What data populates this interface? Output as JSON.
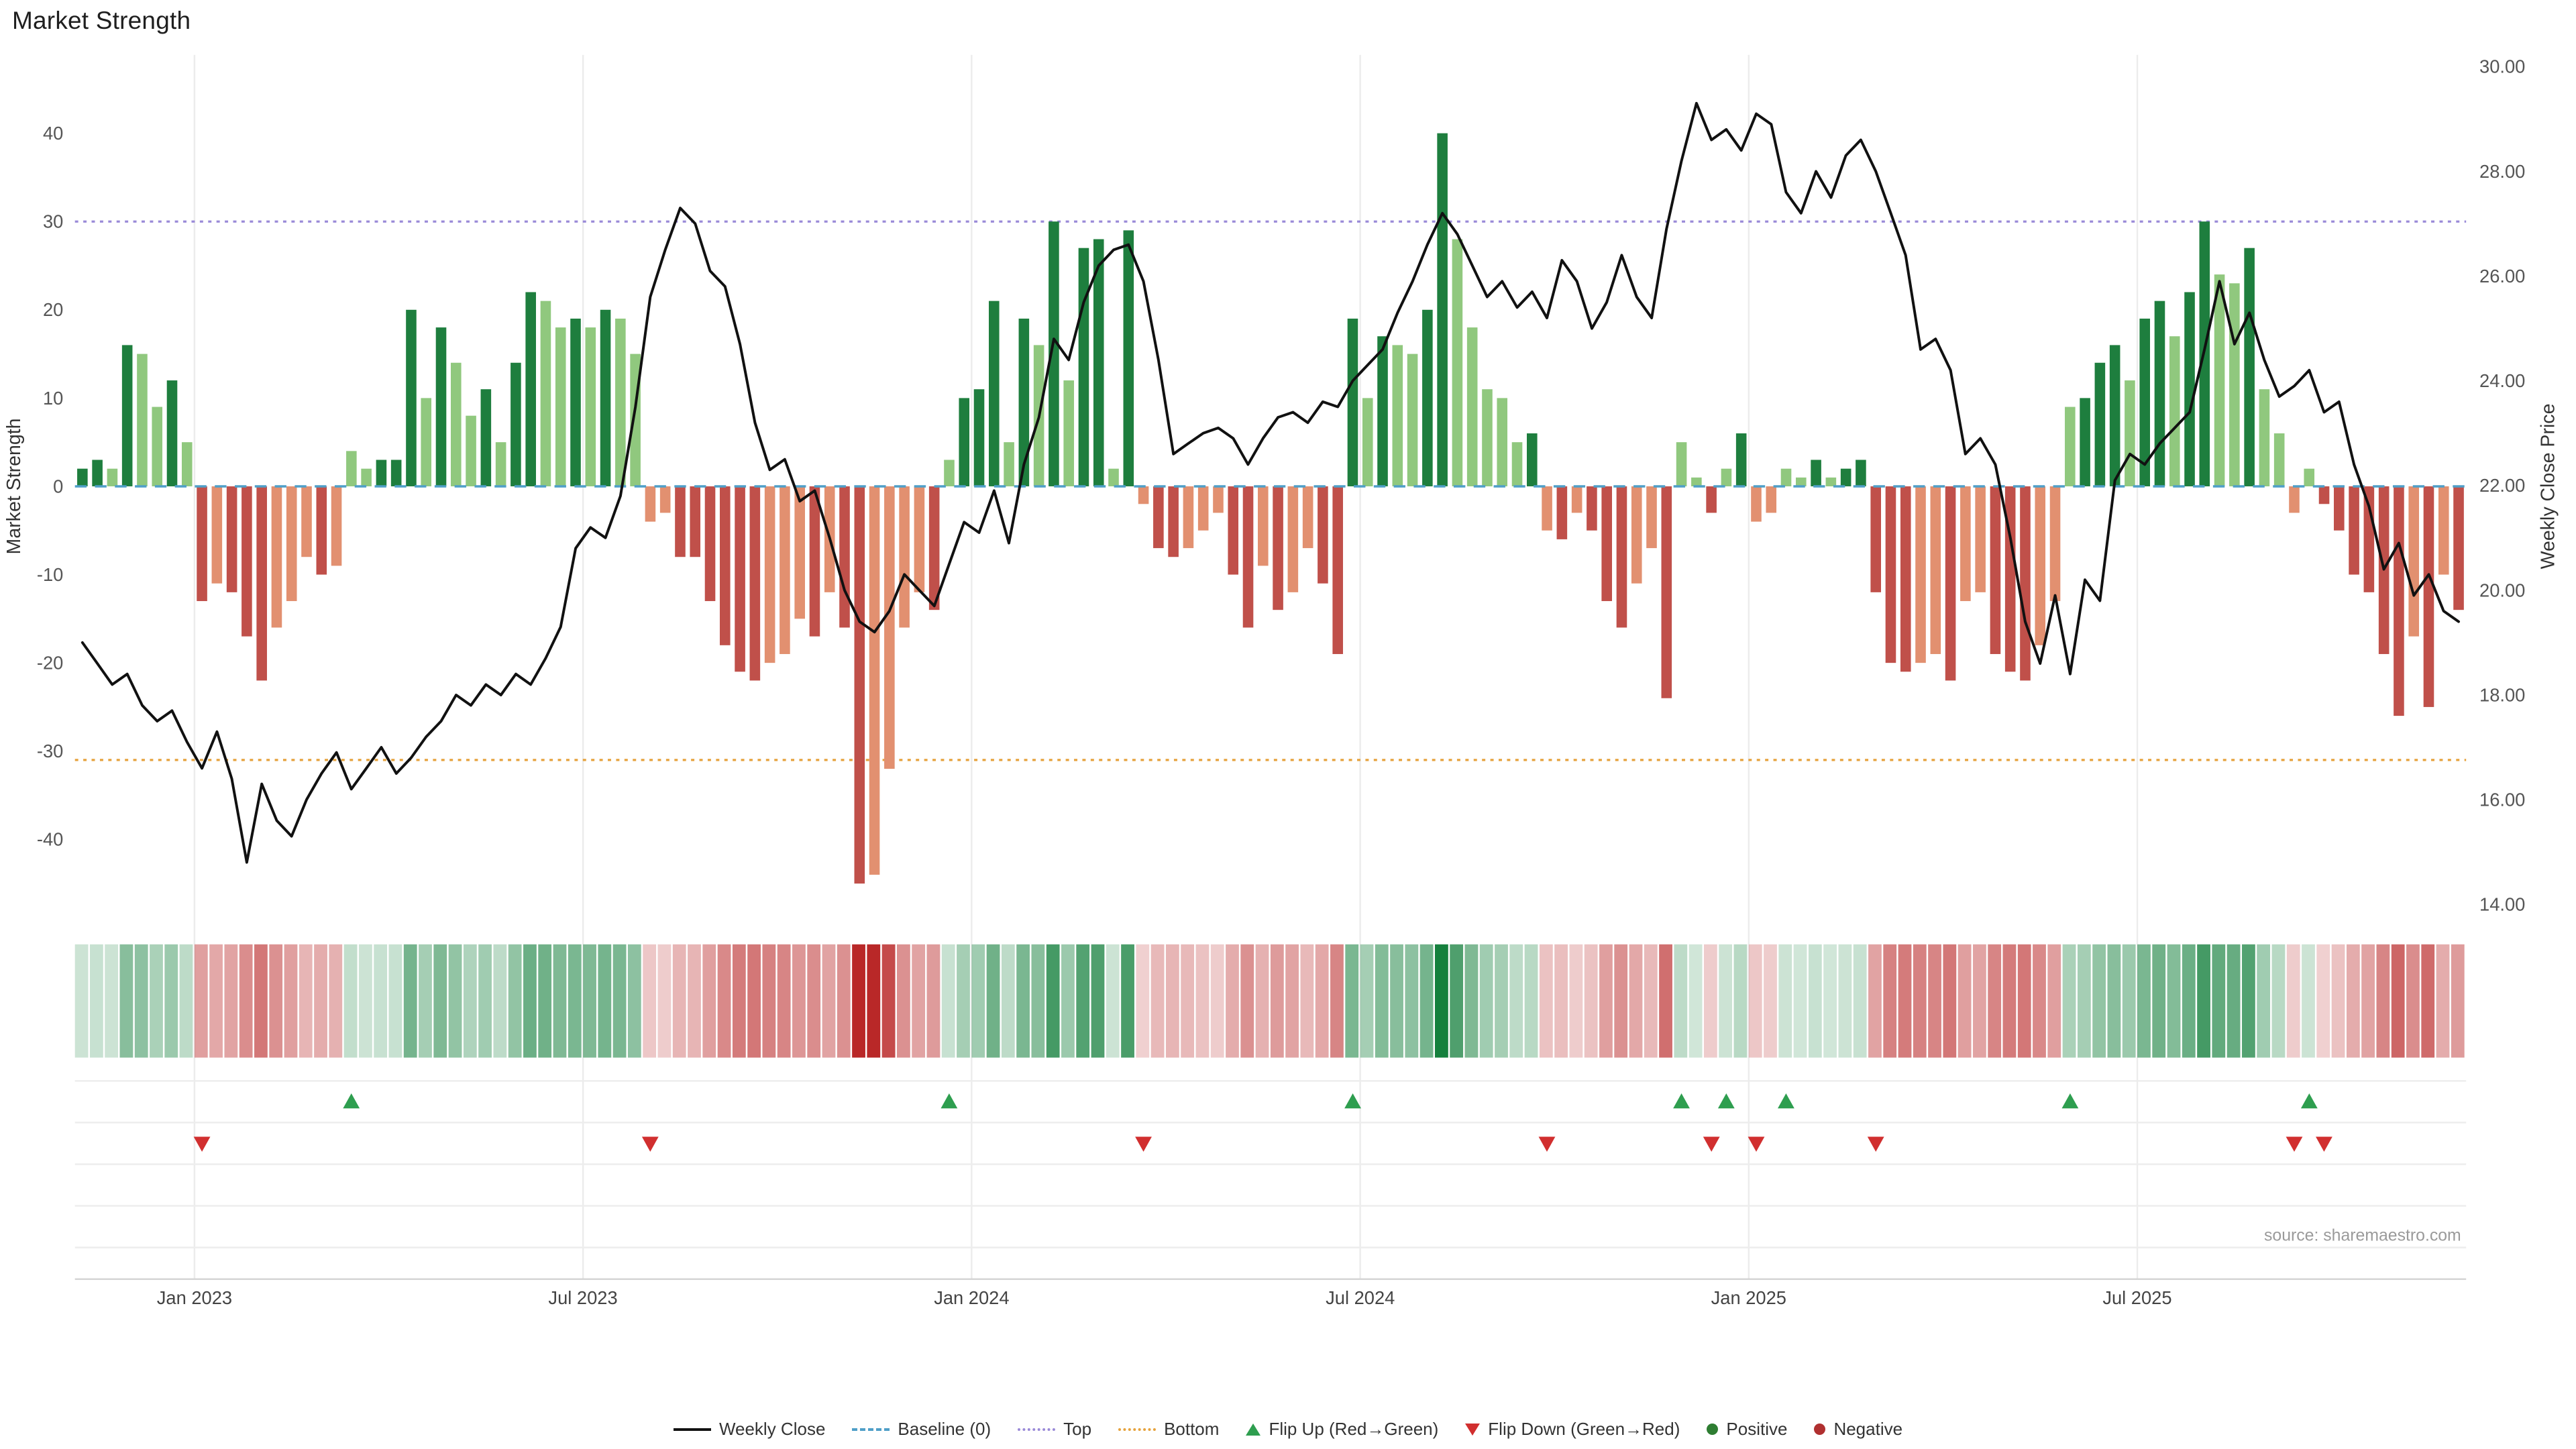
{
  "title": "Market Strength",
  "source": "source: sharemaestro.com",
  "legend": {
    "weekly_close": "Weekly Close",
    "baseline": "Baseline (0)",
    "top": "Top",
    "bottom": "Bottom",
    "flip_up": "Flip Up (Red→Green)",
    "flip_down": "Flip Down (Green→Red)",
    "positive": "Positive",
    "negative": "Negative"
  },
  "colors": {
    "bar_positive_dark": "#1e7e3e",
    "bar_positive_light": "#90c87e",
    "bar_negative_dark": "#c0504a",
    "bar_negative_light": "#e29070",
    "price_line": "#111111",
    "baseline": "#4f9fc8",
    "top_line": "#9a8ad8",
    "bottom_line": "#e6a23c",
    "flip_up": "#2e9e4f",
    "flip_down": "#d12f2f",
    "positive_dot": "#2e7d32",
    "negative_dot": "#b03030",
    "heat_positive": "21,128,61",
    "heat_negative": "185,40,40",
    "grid": "#ececec",
    "panel_line": "#ededed",
    "axis_line": "#d5d5d5",
    "axis_text": "#555555",
    "x_text": "#444444",
    "source_text": "#9a9a9a"
  },
  "chart_data": {
    "type": "bar+line",
    "title": "Market Strength",
    "ylabel_left": "Market Strength",
    "ylabel_right": "Weekly Close Price",
    "start_date": "2022-11-07",
    "frequency": "weekly",
    "baseline": 0,
    "top_line": 30,
    "bottom_line": -31,
    "left_axis": {
      "label": "Market Strength",
      "ticks": [
        -40,
        -30,
        -20,
        -10,
        0,
        10,
        20,
        30,
        40
      ],
      "range": [
        -48,
        48
      ]
    },
    "right_axis": {
      "label": "Weekly Close Price",
      "tick_labels": [
        "14.00",
        "16.00",
        "18.00",
        "20.00",
        "22.00",
        "24.00",
        "26.00",
        "28.00",
        "30.00"
      ],
      "range": [
        14,
        30
      ]
    },
    "x_ticks": [
      {
        "i": 8,
        "label": "Jan 2023"
      },
      {
        "i": 34,
        "label": "Jul 2023"
      },
      {
        "i": 60,
        "label": "Jan 2024"
      },
      {
        "i": 86,
        "label": "Jul 2024"
      },
      {
        "i": 112,
        "label": "Jan 2025"
      },
      {
        "i": 138,
        "label": "Jul 2025"
      }
    ],
    "strength": [
      2,
      3,
      2,
      16,
      15,
      9,
      12,
      5,
      -13,
      -11,
      -12,
      -17,
      -22,
      -16,
      -13,
      -8,
      -10,
      -9,
      4,
      2,
      3,
      3,
      20,
      10,
      18,
      14,
      8,
      11,
      5,
      14,
      22,
      21,
      18,
      19,
      18,
      20,
      19,
      15,
      -4,
      -3,
      -8,
      -8,
      -13,
      -18,
      -21,
      -22,
      -20,
      -19,
      -15,
      -17,
      -12,
      -16,
      -45,
      -44,
      -32,
      -16,
      -12,
      -14,
      3,
      10,
      11,
      21,
      5,
      19,
      16,
      30,
      12,
      27,
      28,
      2,
      29,
      -2,
      -7,
      -8,
      -7,
      -5,
      -3,
      -10,
      -16,
      -9,
      -14,
      -12,
      -7,
      -11,
      -19,
      19,
      10,
      17,
      16,
      15,
      20,
      40,
      28,
      18,
      11,
      10,
      5,
      6,
      -5,
      -6,
      -3,
      -5,
      -13,
      -16,
      -11,
      -7,
      -24,
      5,
      1,
      -3,
      2,
      6,
      -4,
      -3,
      2,
      1,
      3,
      1,
      2,
      3,
      -12,
      -20,
      -21,
      -20,
      -19,
      -22,
      -13,
      -12,
      -19,
      -21,
      -22,
      -18,
      -13,
      9,
      10,
      14,
      16,
      12,
      19,
      21,
      17,
      22,
      30,
      24,
      23,
      27,
      11,
      6,
      -3,
      2,
      -2,
      -5,
      -10,
      -12,
      -19,
      -26,
      -17,
      -25,
      -10,
      -14
    ],
    "price": [
      19.0,
      18.6,
      18.2,
      18.4,
      17.8,
      17.5,
      17.7,
      17.1,
      16.6,
      17.3,
      16.4,
      14.8,
      16.3,
      15.6,
      15.3,
      16.0,
      16.5,
      16.9,
      16.2,
      16.6,
      17.0,
      16.5,
      16.8,
      17.2,
      17.5,
      18.0,
      17.8,
      18.2,
      18.0,
      18.4,
      18.2,
      18.7,
      19.3,
      20.8,
      21.2,
      21.0,
      21.8,
      23.5,
      25.6,
      26.5,
      27.3,
      27.0,
      26.1,
      25.8,
      24.7,
      23.2,
      22.3,
      22.5,
      21.7,
      21.9,
      21.0,
      20.0,
      19.4,
      19.2,
      19.6,
      20.3,
      20.0,
      19.7,
      20.5,
      21.3,
      21.1,
      21.9,
      20.9,
      22.4,
      23.3,
      24.8,
      24.4,
      25.5,
      26.2,
      26.5,
      26.6,
      25.9,
      24.4,
      22.6,
      22.8,
      23.0,
      23.1,
      22.9,
      22.4,
      22.9,
      23.3,
      23.4,
      23.2,
      23.6,
      23.5,
      24.0,
      24.3,
      24.6,
      25.3,
      25.9,
      26.6,
      27.2,
      26.8,
      26.2,
      25.6,
      25.9,
      25.4,
      25.7,
      25.2,
      26.3,
      25.9,
      25.0,
      25.5,
      26.4,
      25.6,
      25.2,
      26.9,
      28.2,
      29.3,
      28.6,
      28.8,
      28.4,
      29.1,
      28.9,
      27.6,
      27.2,
      28.0,
      27.5,
      28.3,
      28.6,
      28.0,
      27.2,
      26.4,
      24.6,
      24.8,
      24.2,
      22.6,
      22.9,
      22.4,
      21.0,
      19.4,
      18.6,
      19.9,
      18.4,
      20.2,
      19.8,
      22.1,
      22.6,
      22.4,
      22.8,
      23.1,
      23.4,
      24.6,
      25.9,
      24.7,
      25.3,
      24.4,
      23.7,
      23.9,
      24.2,
      23.4,
      23.6,
      22.4,
      21.6,
      20.4,
      20.9,
      19.9,
      20.3,
      19.6,
      19.4
    ],
    "flip_up_indices": [
      18,
      58,
      85,
      107,
      110,
      114,
      133,
      149
    ],
    "flip_down_indices": [
      8,
      38,
      71,
      98,
      109,
      112,
      120,
      148,
      150
    ]
  }
}
